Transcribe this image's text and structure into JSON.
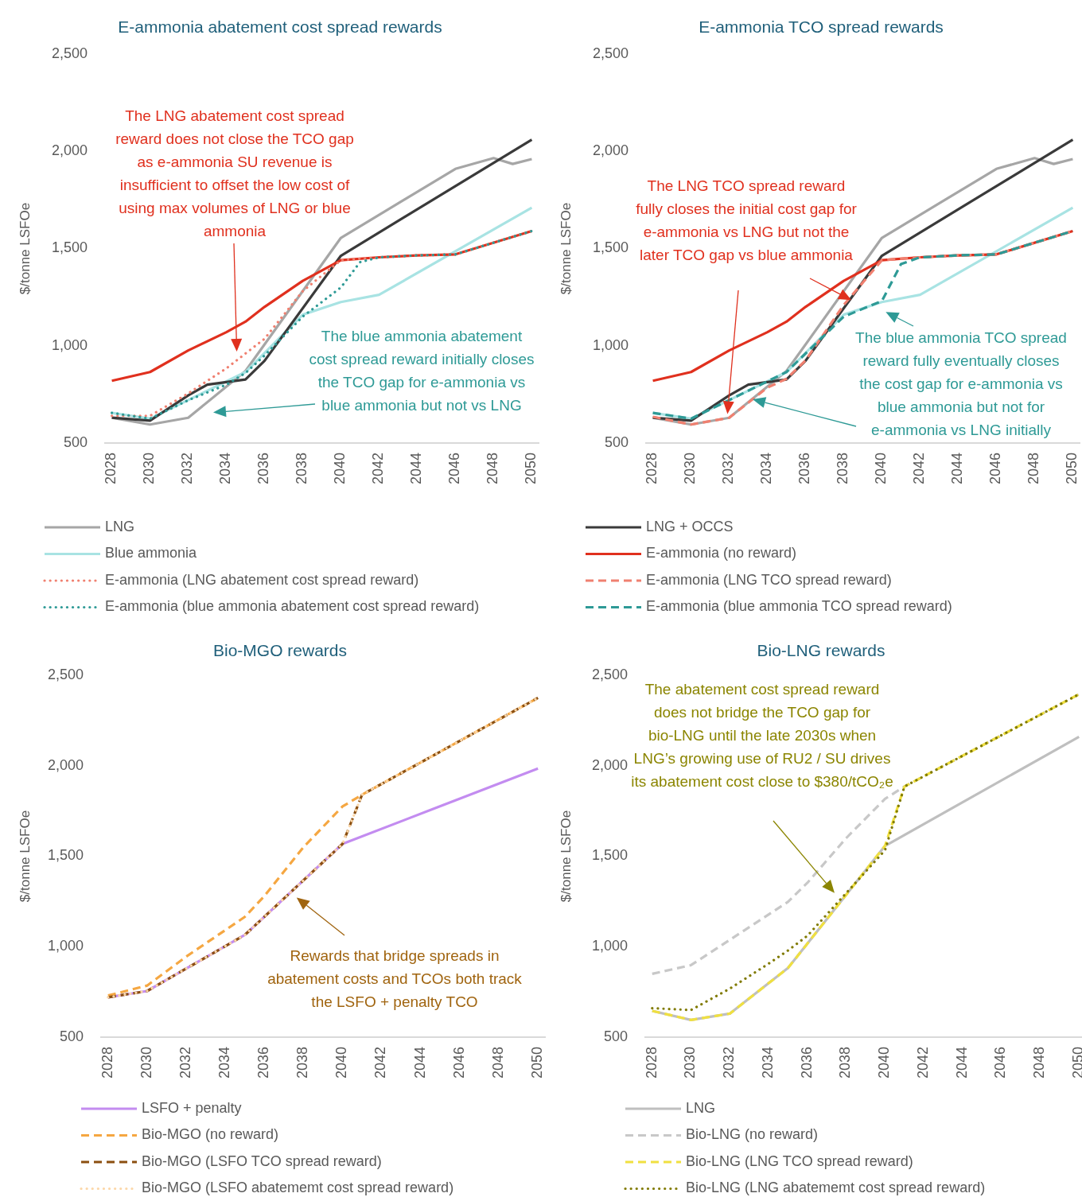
{
  "chart_data": [
    {
      "type": "line",
      "title": "E-ammonia abatement cost spread rewards",
      "ylabel": "$/tonne LSFOe",
      "xlim": [
        2027.6,
        2050.4
      ],
      "xticks": [
        2028,
        2030,
        2032,
        2034,
        2036,
        2038,
        2040,
        2042,
        2044,
        2046,
        2048,
        2050
      ],
      "ylim": [
        500,
        2500
      ],
      "yticks": [
        {
          "value": 500,
          "label": "500"
        },
        {
          "value": 1000,
          "label": "1,000"
        },
        {
          "value": 1500,
          "label": "1,500"
        },
        {
          "value": 2000,
          "label": "2,000"
        },
        {
          "value": 2500,
          "label": "2,500"
        }
      ],
      "grid": false,
      "legend": "bottom",
      "series": [
        {
          "name": "LNG",
          "color": "#a6a6a6",
          "line_style": "solid",
          "x": [
            2028,
            2030,
            2032,
            2035,
            2040,
            2046,
            2048,
            2049,
            2050
          ],
          "values": [
            630,
            595,
            630,
            870,
            1555,
            1910,
            1965,
            1935,
            1960
          ]
        },
        {
          "name": "Blue ammonia",
          "color": "#a8e3e3",
          "line_style": "solid",
          "x": [
            2028,
            2030,
            2035,
            2038,
            2040,
            2042,
            2050
          ],
          "values": [
            655,
            625,
            865,
            1160,
            1225,
            1262,
            1710
          ]
        },
        {
          "color": "#3a3a3a",
          "line_style": "solid",
          "x": [
            2028,
            2030,
            2032,
            2033,
            2035,
            2036,
            2040,
            2050
          ],
          "values": [
            630,
            615,
            745,
            800,
            827,
            923,
            1463,
            2060
          ]
        },
        {
          "color": "#e0301e",
          "line_style": "solid",
          "x": [
            2028,
            2030,
            2032,
            2034,
            2035,
            2036,
            2038,
            2040,
            2042,
            2044,
            2046,
            2050
          ],
          "values": [
            820,
            865,
            976,
            1070,
            1124,
            1200,
            1334,
            1440,
            1455,
            1465,
            1470,
            1590
          ]
        },
        {
          "name": "E-ammonia (LNG abatement cost spread reward)",
          "color": "#f08070",
          "line_style": "dotted",
          "x": [
            2028,
            2030,
            2032,
            2034,
            2036,
            2038,
            2040,
            2042,
            2044,
            2046,
            2050
          ],
          "values": [
            640,
            640,
            755,
            884,
            1036,
            1281,
            1440,
            1455,
            1465,
            1470,
            1590
          ]
        },
        {
          "name": "E-ammonia (blue ammonia abatement cost spread reward)",
          "color": "#2e9a96",
          "line_style": "dotted",
          "x": [
            2028,
            2030,
            2032,
            2034,
            2035,
            2036,
            2038,
            2040,
            2041,
            2042,
            2044,
            2046,
            2050
          ],
          "values": [
            655,
            625,
            720,
            800,
            860,
            950,
            1150,
            1300,
            1430,
            1455,
            1465,
            1470,
            1590
          ]
        }
      ],
      "annotations": [
        "The LNG abatement cost spread reward does not close the TCO gap as e-ammonia SU revenue is insufficient to offset the low cost of using max volumes of LNG or blue ammonia",
        "The blue ammonia abatement cost spread reward initially closes the TCO gap for e-ammonia vs blue ammonia but not vs LNG"
      ]
    },
    {
      "type": "line",
      "title": "E-ammonia TCO spread rewards",
      "ylabel": "$/tonne LSFOe",
      "xlim": [
        2027.6,
        2050.4
      ],
      "xticks": [
        2028,
        2030,
        2032,
        2034,
        2036,
        2038,
        2040,
        2042,
        2044,
        2046,
        2048,
        2050
      ],
      "ylim": [
        500,
        2500
      ],
      "yticks": [
        {
          "value": 500,
          "label": "500"
        },
        {
          "value": 1000,
          "label": "1,000"
        },
        {
          "value": 1500,
          "label": "1,500"
        },
        {
          "value": 2000,
          "label": "2,000"
        },
        {
          "value": 2500,
          "label": "2,500"
        }
      ],
      "grid": false,
      "legend": "bottom",
      "series": [
        {
          "color": "#a6a6a6",
          "line_style": "solid",
          "x": [
            2028,
            2030,
            2032,
            2035,
            2040,
            2046,
            2048,
            2049,
            2050
          ],
          "values": [
            630,
            595,
            630,
            870,
            1555,
            1910,
            1965,
            1935,
            1960
          ]
        },
        {
          "color": "#a8e3e3",
          "line_style": "solid",
          "x": [
            2028,
            2030,
            2035,
            2038,
            2040,
            2042,
            2050
          ],
          "values": [
            655,
            625,
            865,
            1160,
            1225,
            1262,
            1710
          ]
        },
        {
          "name": "LNG + OCCS",
          "color": "#3a3a3a",
          "line_style": "solid",
          "x": [
            2028,
            2030,
            2032,
            2033,
            2035,
            2036,
            2040,
            2050
          ],
          "values": [
            630,
            615,
            745,
            800,
            827,
            923,
            1463,
            2060
          ]
        },
        {
          "name": "E-ammonia (no reward)",
          "color": "#e0301e",
          "line_style": "solid",
          "x": [
            2028,
            2030,
            2032,
            2034,
            2035,
            2036,
            2038,
            2040,
            2042,
            2044,
            2046,
            2050
          ],
          "values": [
            820,
            865,
            976,
            1070,
            1124,
            1200,
            1334,
            1440,
            1455,
            1465,
            1470,
            1590
          ]
        },
        {
          "name": "E-ammonia (LNG TCO spread reward)",
          "color": "#f08070",
          "line_style": "dashed",
          "x": [
            2028,
            2030,
            2032,
            2034,
            2035,
            2036,
            2038,
            2040,
            2042,
            2044,
            2046,
            2050
          ],
          "values": [
            635,
            595,
            630,
            785,
            830,
            925,
            1210,
            1440,
            1455,
            1465,
            1470,
            1590
          ]
        },
        {
          "name": "E-ammonia (blue ammonia TCO spread reward)",
          "color": "#2e9a96",
          "line_style": "dashed",
          "x": [
            2028,
            2030,
            2035,
            2038,
            2040,
            2041,
            2042,
            2044,
            2046,
            2050
          ],
          "values": [
            655,
            625,
            865,
            1150,
            1230,
            1420,
            1455,
            1465,
            1470,
            1590
          ]
        }
      ],
      "annotations": [
        {
          "text": "The LNG TCO spread reward fully closes the initial cost gap for e-ammonia vs LNG but not the later TCO gap vs blue ammonia",
          "x": 2038.4,
          "y": 1235
        },
        "The blue ammonia TCO spread reward fully eventually closes the cost gap for e-ammonia vs blue ammonia but not for e-ammonia vs LNG initially"
      ]
    },
    {
      "type": "line",
      "title": "Bio-MGO rewards",
      "ylabel": "$/tonne LSFOe",
      "xlim": [
        2027.6,
        2050.4
      ],
      "xticks": [
        2028,
        2030,
        2032,
        2034,
        2036,
        2038,
        2040,
        2042,
        2044,
        2046,
        2048,
        2050
      ],
      "ylim": [
        500,
        2500
      ],
      "yticks": [
        {
          "value": 500,
          "label": "500"
        },
        {
          "value": 1000,
          "label": "1,000"
        },
        {
          "value": 1500,
          "label": "1,500"
        },
        {
          "value": 2000,
          "label": "2,000"
        },
        {
          "value": 2500,
          "label": "2,500"
        }
      ],
      "grid": false,
      "legend": "bottom",
      "series": [
        {
          "name": "LSFO + penalty",
          "color": "#c38cf0",
          "line_style": "solid",
          "x": [
            2028,
            2030,
            2035,
            2040,
            2050
          ],
          "values": [
            720,
            755,
            1065,
            1568,
            1985
          ]
        },
        {
          "name": "Bio-MGO (no reward)",
          "color": "#f5a742",
          "line_style": "dashed",
          "x": [
            2028,
            2030,
            2032,
            2035,
            2036,
            2038,
            2040,
            2041,
            2050
          ],
          "values": [
            730,
            785,
            945,
            1165,
            1280,
            1550,
            1775,
            1840,
            2375
          ]
        },
        {
          "name": "Bio-MGO (LSFO TCO spread reward)",
          "color": "#8b4f10",
          "line_style": "dashed",
          "x": [
            2028,
            2030,
            2035,
            2040,
            2041,
            2050
          ],
          "values": [
            720,
            755,
            1065,
            1568,
            1840,
            2375
          ]
        },
        {
          "name": "Bio-MGO (LSFO abatememt cost spread reward)",
          "color": "#fcd7a8",
          "line_style": "dotted",
          "x": [
            2028,
            2030,
            2035,
            2040,
            2041,
            2050
          ],
          "values": [
            720,
            755,
            1065,
            1568,
            1840,
            2375
          ]
        }
      ],
      "annotations": [
        "Rewards that bridge spreads in abatement costs and TCOs both track the LSFO + penalty TCO"
      ]
    },
    {
      "type": "line",
      "title": "Bio-LNG rewards",
      "ylabel": "$/tonne LSFOe",
      "xlim": [
        2027.6,
        2050.4
      ],
      "xticks": [
        2028,
        2030,
        2032,
        2034,
        2036,
        2038,
        2040,
        2042,
        2044,
        2046,
        2048,
        2050
      ],
      "ylim": [
        500,
        2500
      ],
      "yticks": [
        {
          "value": 500,
          "label": "500"
        },
        {
          "value": 1000,
          "label": "1,000"
        },
        {
          "value": 1500,
          "label": "1,500"
        },
        {
          "value": 2000,
          "label": "2,000"
        },
        {
          "value": 2500,
          "label": "2,500"
        }
      ],
      "grid": false,
      "legend": "bottom",
      "series": [
        {
          "name": "LNG",
          "color": "#bfbfbf",
          "line_style": "solid",
          "x": [
            2028,
            2030,
            2032,
            2035,
            2040,
            2050
          ],
          "values": [
            645,
            595,
            630,
            882,
            1557,
            2160
          ]
        },
        {
          "name": "Bio-LNG (no reward)",
          "color": "#c8c8c8",
          "line_style": "dashed",
          "x": [
            2028,
            2030,
            2035,
            2036,
            2038,
            2040,
            2041,
            2050
          ],
          "values": [
            850,
            898,
            1248,
            1353,
            1600,
            1817,
            1885,
            2395
          ]
        },
        {
          "name": "Bio-LNG (LNG TCO spread reward)",
          "color": "#f0e040",
          "line_style": "dashed",
          "x": [
            2028,
            2030,
            2032,
            2035,
            2040,
            2041,
            2050
          ],
          "values": [
            645,
            595,
            630,
            882,
            1557,
            1885,
            2395
          ]
        },
        {
          "name": "Bio-LNG (LNG  abatememt cost spread reward)",
          "color": "#807a00",
          "line_style": "dotted",
          "x": [
            2028,
            2030,
            2032,
            2034,
            2035,
            2036,
            2038,
            2040,
            2041,
            2050
          ],
          "values": [
            660,
            650,
            768,
            906,
            979,
            1060,
            1296,
            1533,
            1885,
            2395
          ]
        }
      ],
      "annotations": [
        "The abatement cost spread reward does not bridge the TCO gap for bio-LNG until the late 2030s when LNG’s growing use of RU2 / SU drives its abatement cost close to $380/tCO₂e"
      ]
    }
  ]
}
